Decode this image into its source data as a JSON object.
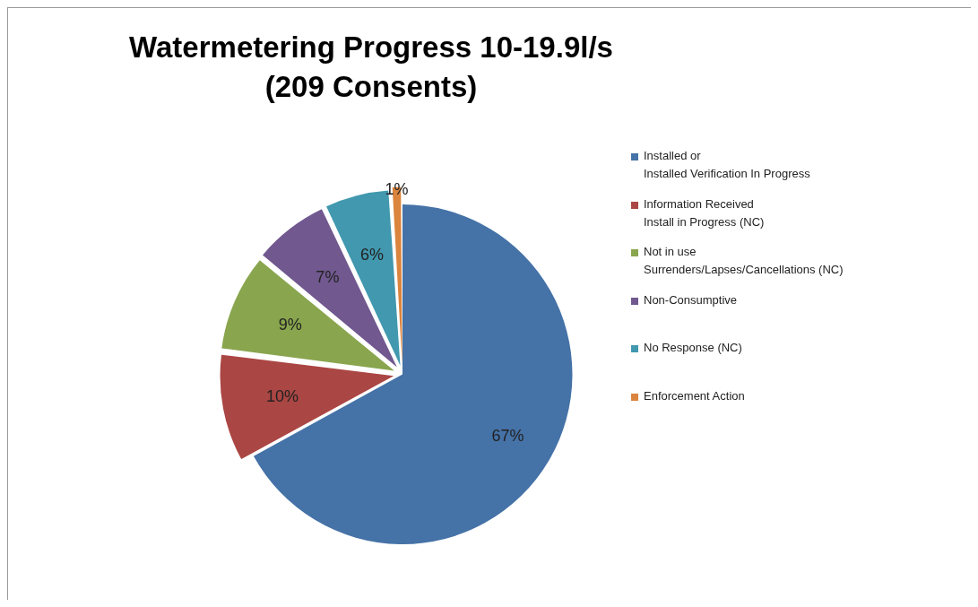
{
  "chart_data": {
    "type": "pie",
    "title": "Watermetering Progress 10-19.9l/s\n(209 Consents)",
    "categories": [
      "Installed or\nInstalled Verification In Progress",
      "Information Received\nInstall in Progress (NC)",
      "Not in use\nSurrenders/Lapses/Cancellations (NC)",
      "Non-Consumptive",
      "No Response (NC)",
      "Enforcement Action"
    ],
    "values": [
      67,
      10,
      9,
      7,
      6,
      1
    ],
    "colors": [
      "#4572a7",
      "#aa4643",
      "#89a54e",
      "#71588f",
      "#4198af",
      "#db843d"
    ],
    "value_labels": [
      "67%",
      "10%",
      "9%",
      "7%",
      "6%",
      "1%"
    ],
    "legend": "right"
  }
}
